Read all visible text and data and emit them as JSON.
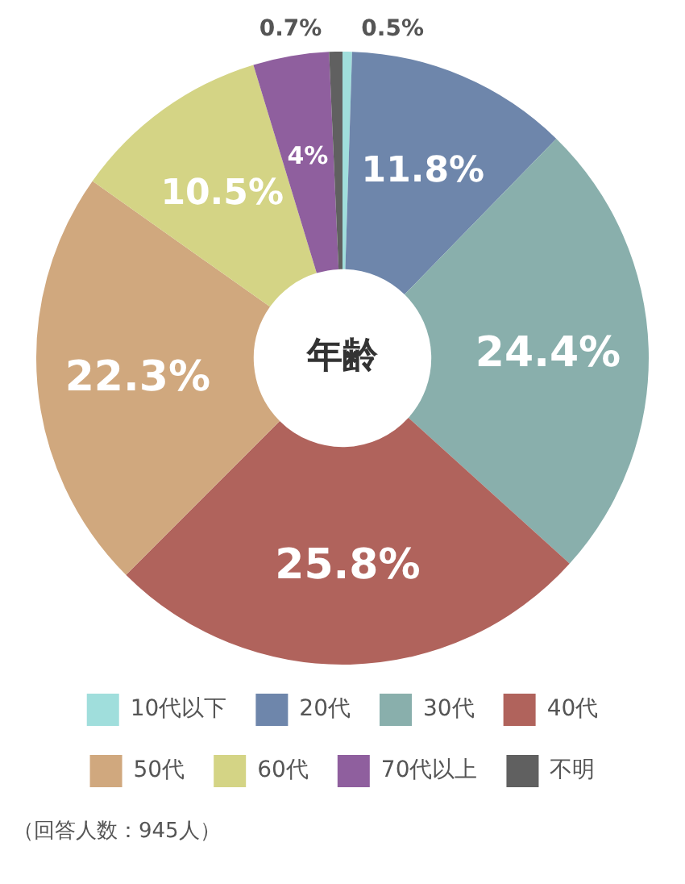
{
  "chart_data": {
    "type": "donut",
    "title": "年齢",
    "categories": [
      "10代以下",
      "20代",
      "30代",
      "40代",
      "50代",
      "60代",
      "70代以上",
      "不明"
    ],
    "values": [
      0.5,
      11.8,
      24.4,
      25.8,
      22.3,
      10.5,
      4,
      0.7
    ],
    "colors": [
      "#a0dedc",
      "#6e86ab",
      "#89afac",
      "#b0635c",
      "#d0a87e",
      "#d4d485",
      "#8f5f9e",
      "#606060"
    ],
    "value_labels": [
      "0.5%",
      "11.8%",
      "24.4%",
      "25.8%",
      "22.3%",
      "10.5%",
      "4%",
      "0.7%"
    ],
    "legend": "bottom",
    "annotations": [
      "（回答人数：945人）"
    ]
  }
}
